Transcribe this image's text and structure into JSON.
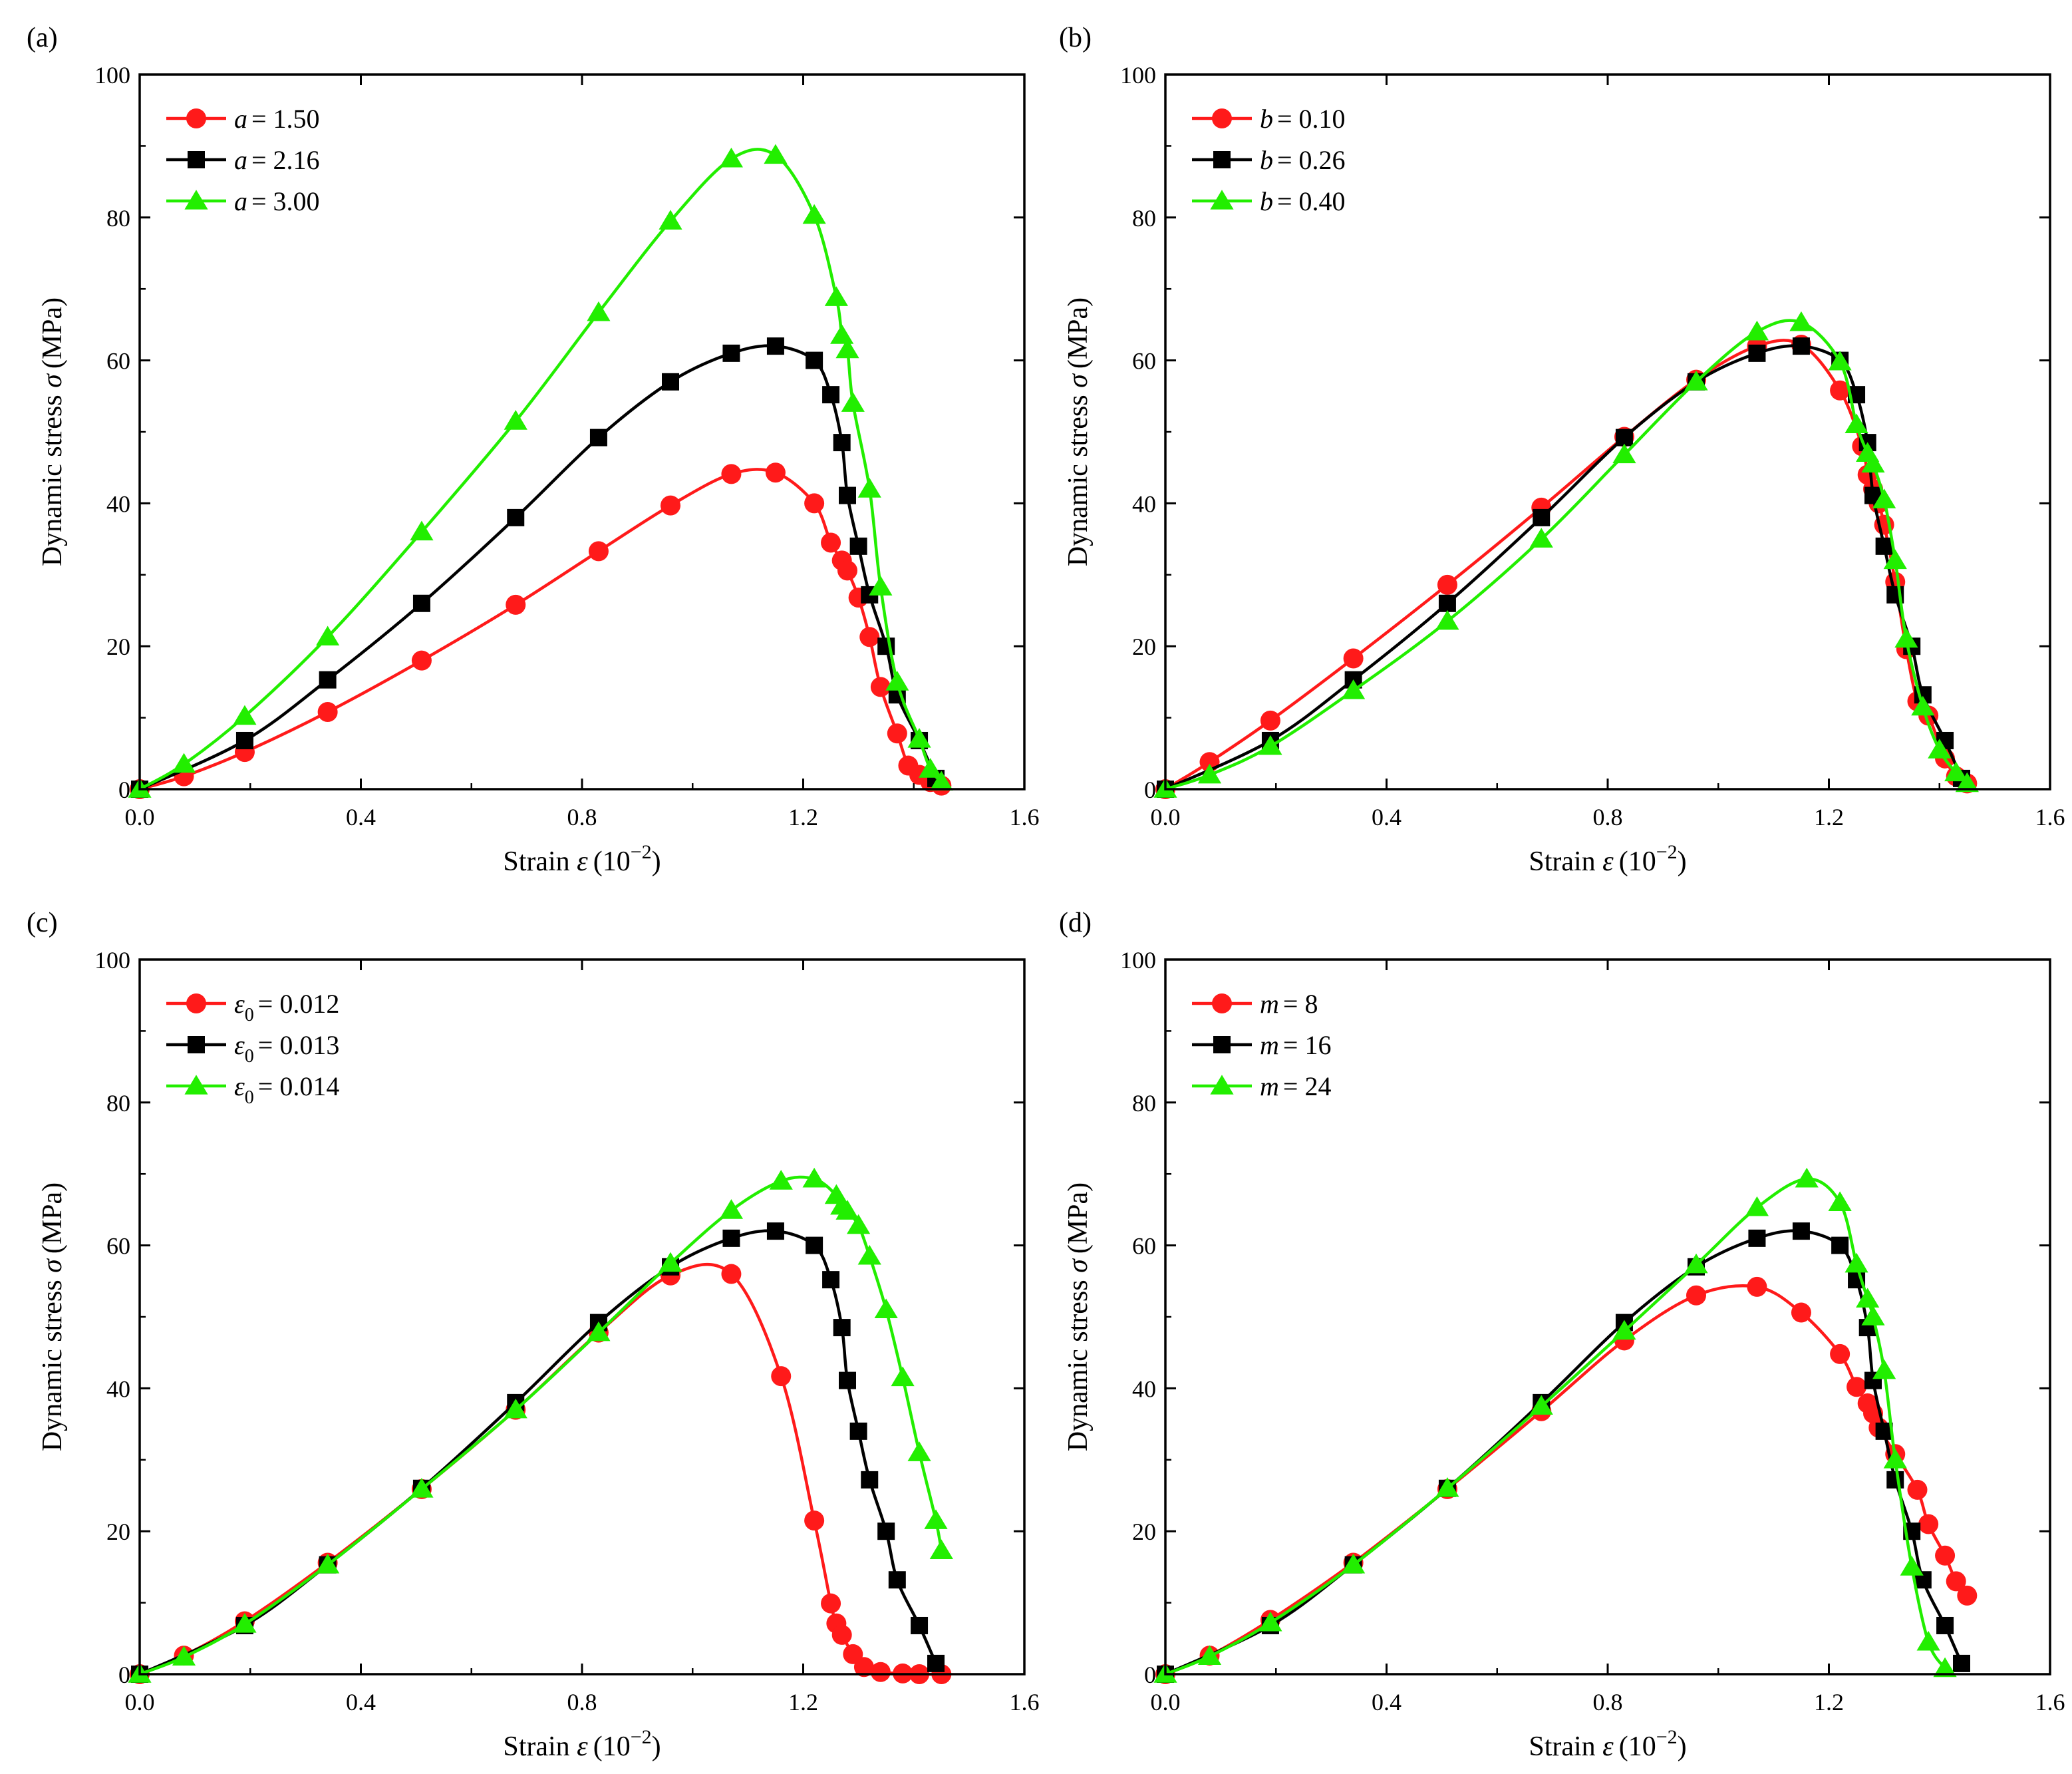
{
  "figure": {
    "colors": {
      "red": "#ff1a1a",
      "black": "#000000",
      "green": "#22ee00"
    }
  },
  "chart_data": [
    {
      "panel": "(a)",
      "type": "line",
      "xlabel_prefix": "Strain ",
      "xlabel_symbol": "ε",
      "xlabel_unit": "(10",
      "xlabel_exp": "−2",
      "xlabel_close": ")",
      "ylabel_prefix": "Dynamic stress ",
      "ylabel_symbol": "σ",
      "ylabel_unit": "(MPa)",
      "xlim": [
        0,
        1.6
      ],
      "ylim": [
        0,
        100
      ],
      "xticks": [
        "0.0",
        "0.4",
        "0.8",
        "1.2",
        "1.6"
      ],
      "yticks": [
        "0",
        "20",
        "40",
        "60",
        "80",
        "100"
      ],
      "legend_position": "top-left",
      "series": [
        {
          "name": "a = 1.50",
          "symbol": "a",
          "sub": "",
          "value": "= 1.50",
          "color": "#ff1a1a",
          "marker": "circle",
          "x": [
            0,
            0.08,
            0.19,
            0.34,
            0.51,
            0.68,
            0.83,
            0.96,
            1.07,
            1.15,
            1.22,
            1.25,
            1.27,
            1.28,
            1.3,
            1.32,
            1.34,
            1.37,
            1.39,
            1.41,
            1.43,
            1.45
          ],
          "y": [
            0,
            1.8,
            5.2,
            10.8,
            18,
            25.8,
            33.3,
            39.7,
            44.1,
            44.3,
            40,
            34.5,
            32,
            30.6,
            26.8,
            21.3,
            14.3,
            7.8,
            3.3,
            2,
            1,
            0.5
          ]
        },
        {
          "name": "a = 2.16",
          "symbol": "a",
          "sub": "",
          "value": "= 2.16",
          "color": "#000000",
          "marker": "square",
          "x": [
            0,
            0.19,
            0.34,
            0.51,
            0.68,
            0.83,
            0.96,
            1.07,
            1.15,
            1.22,
            1.25,
            1.27,
            1.28,
            1.3,
            1.32,
            1.35,
            1.37,
            1.41,
            1.44
          ],
          "y": [
            0,
            6.8,
            15.3,
            26,
            38,
            49.2,
            57,
            61,
            62,
            60,
            55.2,
            48.5,
            41.1,
            34,
            27.2,
            20,
            13.2,
            6.8,
            1.5
          ]
        },
        {
          "name": "a = 3.00",
          "symbol": "a",
          "sub": "",
          "value": "= 3.00",
          "color": "#22ee00",
          "marker": "triangle",
          "x": [
            0,
            0.08,
            0.19,
            0.34,
            0.51,
            0.68,
            0.83,
            0.96,
            1.07,
            1.15,
            1.22,
            1.26,
            1.27,
            1.28,
            1.29,
            1.32,
            1.34,
            1.37,
            1.41,
            1.43,
            1.45
          ],
          "y": [
            0,
            3.5,
            10.2,
            21.3,
            36,
            51.5,
            66.7,
            79.5,
            88.2,
            88.7,
            80.3,
            68.8,
            63.5,
            61.5,
            54,
            42,
            28.3,
            15,
            7,
            2.8,
            1
          ]
        }
      ]
    },
    {
      "panel": "(b)",
      "type": "line",
      "xlabel_prefix": "Strain ",
      "xlabel_symbol": "ε",
      "xlabel_unit": "(10",
      "xlabel_exp": "−2",
      "xlabel_close": ")",
      "ylabel_prefix": "Dynamic stress ",
      "ylabel_symbol": "σ",
      "ylabel_unit": "(MPa)",
      "xlim": [
        0,
        1.6
      ],
      "ylim": [
        0,
        100
      ],
      "xticks": [
        "0.0",
        "0.4",
        "0.8",
        "1.2",
        "1.6"
      ],
      "yticks": [
        "0",
        "20",
        "40",
        "60",
        "80",
        "100"
      ],
      "legend_position": "top-left",
      "series": [
        {
          "name": "b = 0.10",
          "symbol": "b",
          "sub": "",
          "value": "= 0.10",
          "color": "#ff1a1a",
          "marker": "circle",
          "x": [
            0,
            0.08,
            0.19,
            0.34,
            0.51,
            0.68,
            0.83,
            0.96,
            1.07,
            1.15,
            1.22,
            1.26,
            1.27,
            1.28,
            1.29,
            1.3,
            1.32,
            1.34,
            1.36,
            1.38,
            1.41,
            1.43,
            1.45
          ],
          "y": [
            0,
            3.8,
            9.6,
            18.3,
            28.6,
            39.4,
            49.3,
            57.3,
            62,
            62.2,
            55.8,
            48,
            44,
            42,
            40,
            37,
            29,
            19.6,
            12.3,
            10.3,
            4.3,
            1.8,
            0.8
          ]
        },
        {
          "name": "b = 0.26",
          "symbol": "b",
          "sub": "",
          "value": "= 0.26",
          "color": "#000000",
          "marker": "square",
          "x": [
            0,
            0.19,
            0.34,
            0.51,
            0.68,
            0.83,
            0.96,
            1.07,
            1.15,
            1.22,
            1.25,
            1.27,
            1.28,
            1.3,
            1.32,
            1.35,
            1.37,
            1.41,
            1.44
          ],
          "y": [
            0,
            6.8,
            15.3,
            26,
            38,
            49.2,
            57,
            61,
            62,
            60,
            55.2,
            48.5,
            41.1,
            34,
            27.2,
            20,
            13.2,
            6.8,
            1.5
          ]
        },
        {
          "name": "b = 0.40",
          "symbol": "b",
          "sub": "",
          "value": "= 0.40",
          "color": "#22ee00",
          "marker": "triangle",
          "x": [
            0,
            0.08,
            0.19,
            0.34,
            0.51,
            0.68,
            0.83,
            0.96,
            1.07,
            1.15,
            1.22,
            1.25,
            1.27,
            1.28,
            1.3,
            1.32,
            1.34,
            1.37,
            1.4,
            1.43,
            1.45
          ],
          "y": [
            0,
            2,
            6,
            13.8,
            23.5,
            35,
            46.8,
            57,
            64,
            65.3,
            59.8,
            51,
            47,
            45.5,
            40.5,
            32,
            21,
            11.5,
            5.5,
            2.3,
            0.8
          ]
        }
      ]
    },
    {
      "panel": "(c)",
      "type": "line",
      "xlabel_prefix": "Strain ",
      "xlabel_symbol": "ε",
      "xlabel_unit": "(10",
      "xlabel_exp": "−2",
      "xlabel_close": ")",
      "ylabel_prefix": "Dynamic stress ",
      "ylabel_symbol": "σ",
      "ylabel_unit": "(MPa)",
      "xlim": [
        0,
        1.6
      ],
      "ylim": [
        0,
        100
      ],
      "xticks": [
        "0.0",
        "0.4",
        "0.8",
        "1.2",
        "1.6"
      ],
      "yticks": [
        "0",
        "20",
        "40",
        "60",
        "80",
        "100"
      ],
      "legend_position": "top-left",
      "series": [
        {
          "name": "ε0 = 0.012",
          "symbol": "ε",
          "sub": "0",
          "value": "= 0.012",
          "color": "#ff1a1a",
          "marker": "circle",
          "x": [
            0,
            0.08,
            0.19,
            0.34,
            0.51,
            0.68,
            0.83,
            0.96,
            1.07,
            1.16,
            1.22,
            1.25,
            1.26,
            1.27,
            1.29,
            1.31,
            1.34,
            1.38,
            1.41,
            1.45
          ],
          "y": [
            0,
            2.6,
            7.4,
            15.6,
            25.9,
            37,
            47.8,
            55.8,
            56,
            41.7,
            21.5,
            9.9,
            7.1,
            5.5,
            2.8,
            1,
            0.3,
            0.1,
            0,
            0
          ]
        },
        {
          "name": "ε0 = 0.013",
          "symbol": "ε",
          "sub": "0",
          "value": "= 0.013",
          "color": "#000000",
          "marker": "square",
          "x": [
            0,
            0.19,
            0.34,
            0.51,
            0.68,
            0.83,
            0.96,
            1.07,
            1.15,
            1.22,
            1.25,
            1.27,
            1.28,
            1.3,
            1.32,
            1.35,
            1.37,
            1.41,
            1.44
          ],
          "y": [
            0,
            6.8,
            15.3,
            26,
            38,
            49.2,
            57,
            61,
            62,
            60,
            55.2,
            48.5,
            41.1,
            34,
            27.2,
            20,
            13.2,
            6.8,
            1.5
          ]
        },
        {
          "name": "ε0 = 0.014",
          "symbol": "ε",
          "sub": "0",
          "value": "= 0.014",
          "color": "#22ee00",
          "marker": "triangle",
          "x": [
            0,
            0.08,
            0.19,
            0.34,
            0.51,
            0.68,
            0.83,
            0.96,
            1.07,
            1.16,
            1.22,
            1.26,
            1.27,
            1.28,
            1.3,
            1.32,
            1.35,
            1.38,
            1.41,
            1.44,
            1.45
          ],
          "y": [
            0,
            2.4,
            7,
            15.3,
            25.9,
            37,
            47.8,
            57.5,
            64.9,
            69,
            69.3,
            67,
            65.5,
            64.8,
            62.8,
            58.5,
            51,
            41.5,
            31,
            21.5,
            17.3
          ]
        }
      ]
    },
    {
      "panel": "(d)",
      "type": "line",
      "xlabel_prefix": "Strain ",
      "xlabel_symbol": "ε",
      "xlabel_unit": "(10",
      "xlabel_exp": "−2",
      "xlabel_close": ")",
      "ylabel_prefix": "Dynamic stress ",
      "ylabel_symbol": "σ",
      "ylabel_unit": "(MPa)",
      "xlim": [
        0,
        1.6
      ],
      "ylim": [
        0,
        100
      ],
      "xticks": [
        "0.0",
        "0.4",
        "0.8",
        "1.2",
        "1.6"
      ],
      "yticks": [
        "0",
        "20",
        "40",
        "60",
        "80",
        "100"
      ],
      "legend_position": "top-left",
      "series": [
        {
          "name": "m = 8",
          "symbol": "m",
          "sub": "",
          "value": "= 8",
          "color": "#ff1a1a",
          "marker": "circle",
          "x": [
            0,
            0.08,
            0.19,
            0.34,
            0.51,
            0.68,
            0.83,
            0.96,
            1.07,
            1.15,
            1.22,
            1.25,
            1.27,
            1.28,
            1.29,
            1.32,
            1.36,
            1.38,
            1.41,
            1.43,
            1.45
          ],
          "y": [
            0,
            2.6,
            7.6,
            15.6,
            25.9,
            36.8,
            46.7,
            53,
            54.2,
            50.6,
            44.8,
            40.2,
            37.9,
            36.5,
            34.5,
            30.8,
            25.8,
            21,
            16.6,
            13,
            11
          ]
        },
        {
          "name": "m = 16",
          "symbol": "m",
          "sub": "",
          "value": "= 16",
          "color": "#000000",
          "marker": "square",
          "x": [
            0,
            0.19,
            0.34,
            0.51,
            0.68,
            0.83,
            0.96,
            1.07,
            1.15,
            1.22,
            1.25,
            1.27,
            1.28,
            1.3,
            1.32,
            1.35,
            1.37,
            1.41,
            1.44
          ],
          "y": [
            0,
            6.8,
            15.3,
            26,
            38,
            49.2,
            57,
            61,
            62,
            60,
            55.2,
            48.5,
            41.1,
            34,
            27.2,
            20,
            13.2,
            6.8,
            1.5
          ]
        },
        {
          "name": "m = 24",
          "symbol": "m",
          "sub": "",
          "value": "= 24",
          "color": "#22ee00",
          "marker": "triangle",
          "x": [
            0,
            0.08,
            0.19,
            0.34,
            0.51,
            0.68,
            0.83,
            0.96,
            1.07,
            1.16,
            1.22,
            1.25,
            1.27,
            1.28,
            1.3,
            1.32,
            1.35,
            1.38,
            1.41
          ],
          "y": [
            0,
            2.5,
            7.2,
            15.3,
            26,
            37.5,
            48,
            57.3,
            65.3,
            69.3,
            66,
            57.4,
            52.5,
            50,
            42.5,
            30,
            15,
            4.5,
            0.8
          ]
        }
      ]
    }
  ]
}
